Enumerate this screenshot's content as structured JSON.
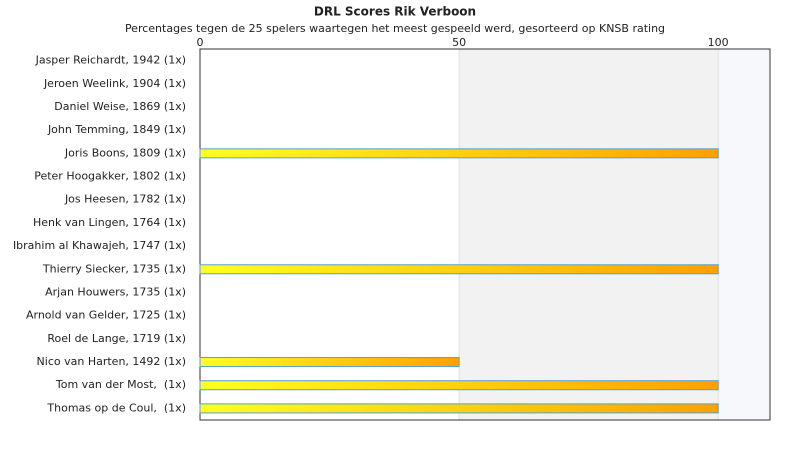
{
  "chart_data": {
    "type": "hbar",
    "title": "DRL Scores Rik Verboon",
    "subtitle": "Percentages tegen de 25 spelers waartegen het meest gespeeld werd, gesorteerd op KNSB rating",
    "categories": [
      "Jasper Reichardt, 1942 (1x)",
      "Jeroen Weelink, 1904 (1x)",
      "Daniel Weise, 1869 (1x)",
      "John Temming, 1849 (1x)",
      "Joris Boons, 1809 (1x)",
      "Peter Hoogakker, 1802 (1x)",
      "Jos Heesen, 1782 (1x)",
      "Henk van Lingen, 1764 (1x)",
      "Ibrahim al Khawajeh, 1747 (1x)",
      "Thierry Siecker, 1735 (1x)",
      "Arjan Houwers, 1735 (1x)",
      "Arnold van Gelder, 1725 (1x)",
      "Roel de Lange, 1719 (1x)",
      "Nico van Harten, 1492 (1x)",
      "Tom van der Most,  (1x)",
      "Thomas op de Coul,  (1x)"
    ],
    "values": [
      0,
      0,
      0,
      0,
      100,
      0,
      0,
      0,
      0,
      100,
      0,
      0,
      0,
      50,
      100,
      100
    ],
    "xlim": [
      0,
      110
    ],
    "xticks": [
      0,
      50,
      100
    ]
  }
}
